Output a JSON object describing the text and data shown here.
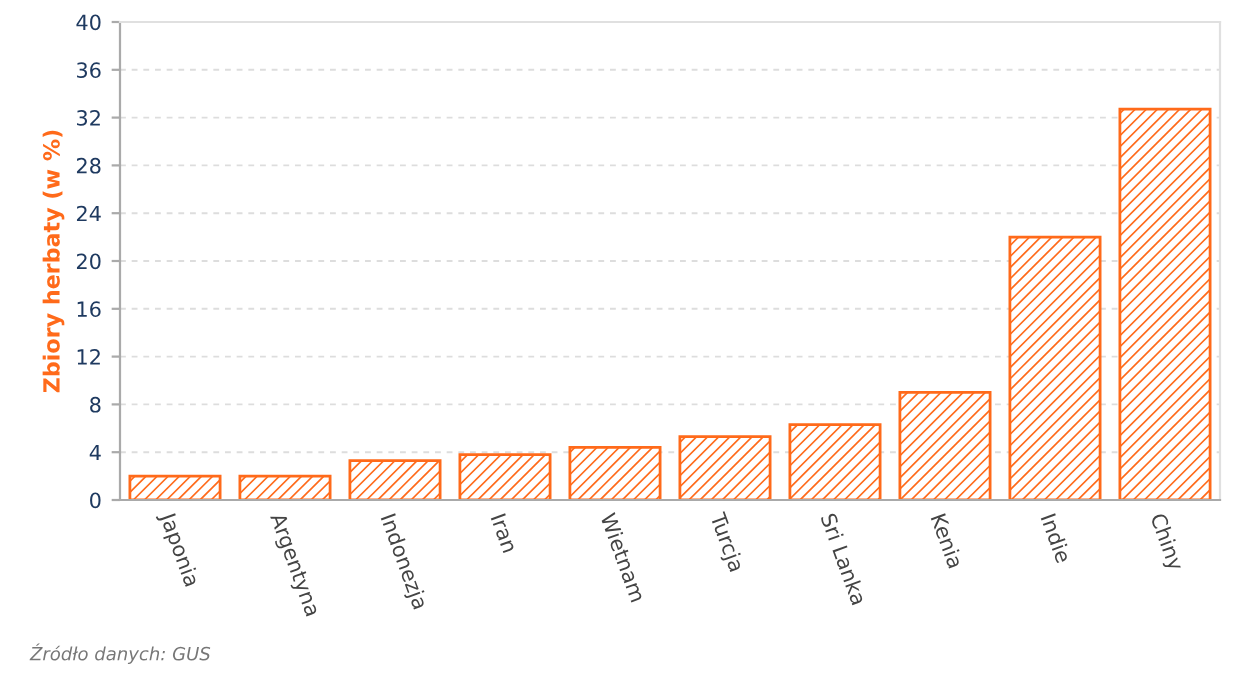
{
  "chart_data": {
    "type": "bar",
    "ylabel": "Zbiory herbaty (w %)",
    "categories": [
      "Japonia",
      "Argentyna",
      "Indonezja",
      "Iran",
      "Wietnam",
      "Turcja",
      "Sri Lanka",
      "Kenia",
      "Indie",
      "Chiny"
    ],
    "values": [
      2.0,
      2.0,
      3.3,
      3.8,
      4.4,
      5.3,
      6.3,
      9.0,
      22.0,
      32.7
    ],
    "color": "#ff6a1a",
    "ylim": [
      0,
      40
    ],
    "yticks": [
      0,
      4,
      8,
      12,
      16,
      20,
      24,
      28,
      32,
      36,
      40
    ],
    "grid": "y",
    "annotations": [
      "Źródło danych: GUS"
    ]
  }
}
